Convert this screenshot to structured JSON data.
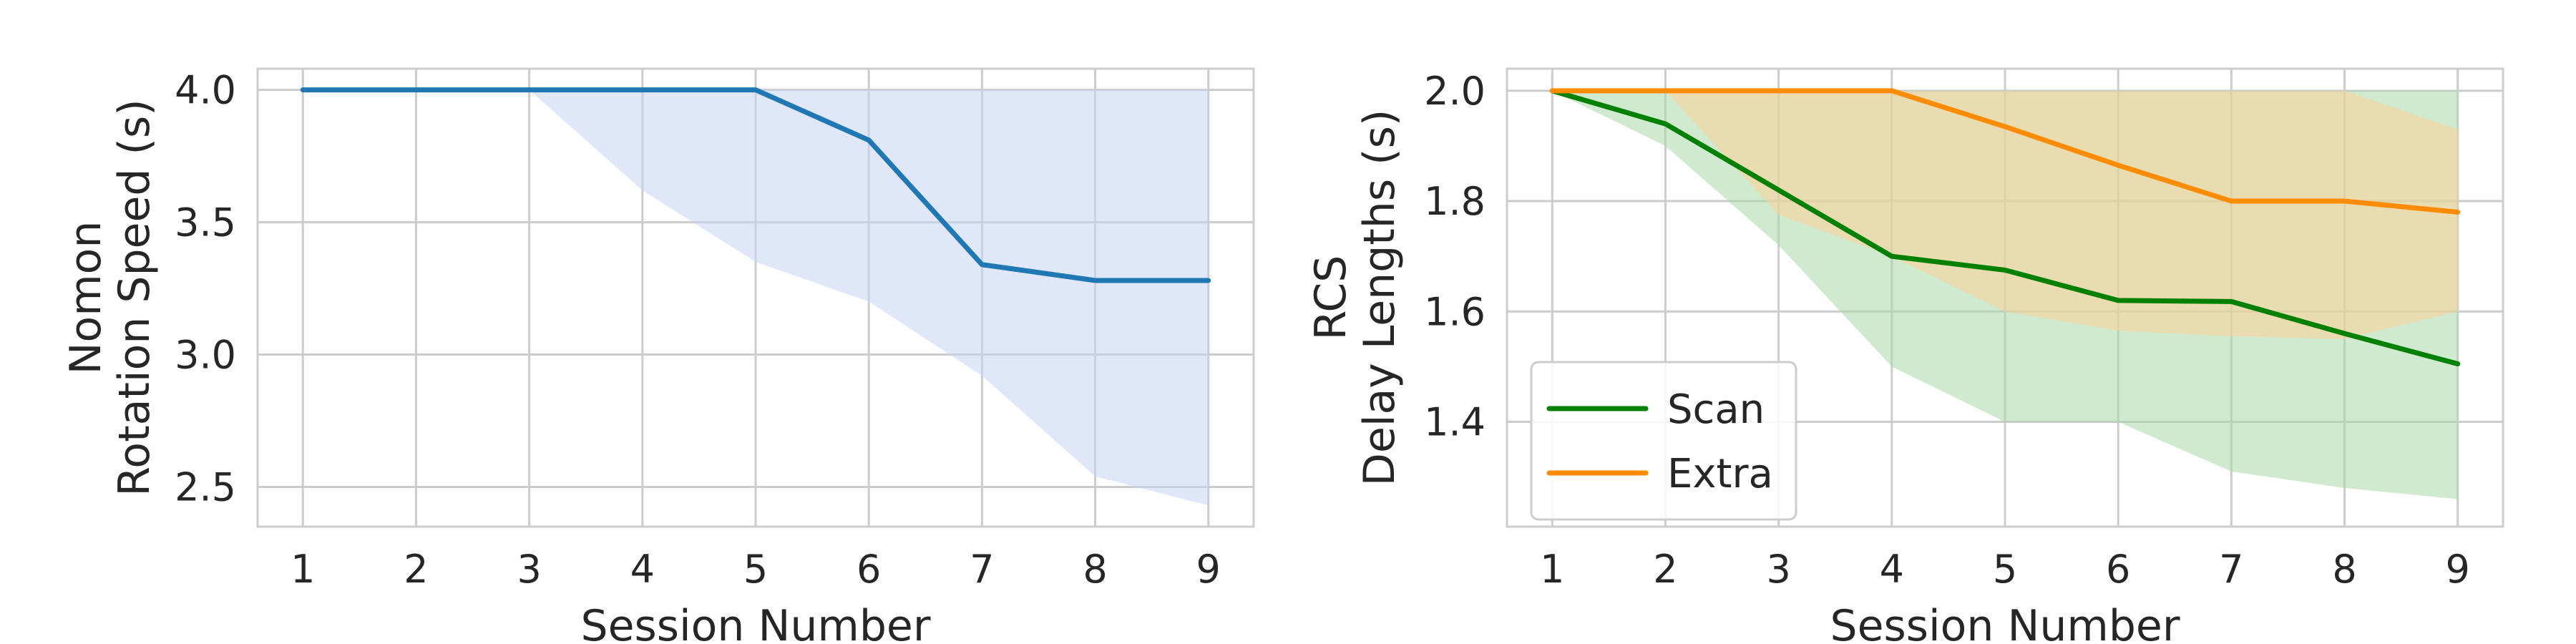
{
  "chart_data": [
    {
      "type": "line",
      "title": "",
      "xlabel": "Session Number",
      "ylabel_lines": [
        "Nomon",
        "Rotation Speed (s)"
      ],
      "x": [
        1,
        2,
        3,
        4,
        5,
        6,
        7,
        8,
        9
      ],
      "xticks": [
        "1",
        "2",
        "3",
        "4",
        "5",
        "6",
        "7",
        "8",
        "9"
      ],
      "xlim": [
        0.6,
        9.4
      ],
      "ylim": [
        2.35,
        4.08
      ],
      "yticks": [
        2.5,
        3.0,
        3.5,
        4.0
      ],
      "ytick_labels": [
        "2.5",
        "3.0",
        "3.5",
        "4.0"
      ],
      "grid": true,
      "legend": null,
      "series": [
        {
          "values": [
            4.0,
            4.0,
            4.0,
            4.0,
            4.0,
            3.81,
            3.34,
            3.28,
            3.28
          ],
          "color": "#1f77b4",
          "band_lower": [
            4.0,
            4.0,
            4.0,
            3.62,
            3.35,
            3.2,
            2.92,
            2.54,
            2.43
          ],
          "band_upper": [
            4.0,
            4.0,
            4.0,
            4.0,
            4.0,
            4.0,
            4.0,
            4.0,
            4.0
          ],
          "band_color": "#c5d4f4"
        }
      ]
    },
    {
      "type": "line",
      "title": "",
      "xlabel": "Session Number",
      "ylabel_lines": [
        "RCS",
        "Delay Lengths (s)"
      ],
      "x": [
        1,
        2,
        3,
        4,
        5,
        6,
        7,
        8,
        9
      ],
      "xticks": [
        "1",
        "2",
        "3",
        "4",
        "5",
        "6",
        "7",
        "8",
        "9"
      ],
      "xlim": [
        0.6,
        9.4
      ],
      "ylim": [
        1.21,
        2.04
      ],
      "yticks": [
        1.4,
        1.6,
        1.8,
        2.0
      ],
      "ytick_labels": [
        "1.4",
        "1.6",
        "1.8",
        "2.0"
      ],
      "grid": true,
      "legend": "lower-left",
      "series": [
        {
          "name": "Scan",
          "values": [
            2.0,
            1.94,
            1.82,
            1.7,
            1.675,
            1.62,
            1.618,
            1.56,
            1.505
          ],
          "color": "#008000",
          "band_lower": [
            2.0,
            1.9,
            1.72,
            1.5,
            1.4,
            1.4,
            1.31,
            1.28,
            1.26
          ],
          "band_upper": [
            2.0,
            2.0,
            2.0,
            2.0,
            2.0,
            2.0,
            2.0,
            2.0,
            2.0
          ],
          "band_color": "#a8d8a8"
        },
        {
          "name": "Extra",
          "values": [
            2.0,
            2.0,
            2.0,
            2.0,
            1.935,
            1.865,
            1.8,
            1.8,
            1.78
          ],
          "color": "#ff8c00",
          "band_lower": [
            2.0,
            2.0,
            1.775,
            1.7,
            1.6,
            1.565,
            1.555,
            1.55,
            1.6
          ],
          "band_upper": [
            2.0,
            2.0,
            2.0,
            2.0,
            2.0,
            2.0,
            2.0,
            2.0,
            1.93
          ],
          "band_color": "#ffcf99"
        }
      ]
    }
  ]
}
